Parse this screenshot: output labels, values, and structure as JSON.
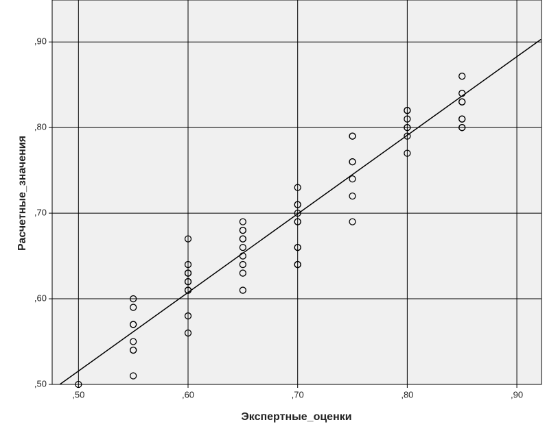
{
  "chart_data": {
    "type": "scatter",
    "x_label": "Экспертные_оценки",
    "y_label": "Расчетные_значения",
    "xlim": [
      0.476,
      0.9225
    ],
    "ylim": [
      0.5,
      0.949
    ],
    "xticks": [
      {
        "value": 0.5,
        "label": ",50"
      },
      {
        "value": 0.6,
        "label": ",60"
      },
      {
        "value": 0.7,
        "label": ",70"
      },
      {
        "value": 0.8,
        "label": ",80"
      },
      {
        "value": 0.9,
        "label": ",90"
      }
    ],
    "yticks": [
      {
        "value": 0.5,
        "label": ",50"
      },
      {
        "value": 0.6,
        "label": ",60"
      },
      {
        "value": 0.7,
        "label": ",70"
      },
      {
        "value": 0.8,
        "label": ",80"
      },
      {
        "value": 0.9,
        "label": ",90"
      }
    ],
    "grid": true,
    "background": "#f0f0f0",
    "color": "#000000",
    "x": [
      0.5,
      0.55,
      0.55,
      0.55,
      0.55,
      0.55,
      0.55,
      0.55,
      0.55,
      0.6,
      0.6,
      0.6,
      0.6,
      0.6,
      0.6,
      0.6,
      0.6,
      0.6,
      0.6,
      0.65,
      0.65,
      0.65,
      0.65,
      0.65,
      0.65,
      0.65,
      0.65,
      0.65,
      0.65,
      0.7,
      0.7,
      0.7,
      0.7,
      0.7,
      0.7,
      0.7,
      0.7,
      0.7,
      0.7,
      0.75,
      0.75,
      0.75,
      0.75,
      0.75,
      0.75,
      0.75,
      0.8,
      0.8,
      0.8,
      0.8,
      0.8,
      0.8,
      0.8,
      0.85,
      0.85,
      0.85,
      0.85,
      0.85,
      0.85,
      0.85,
      0.85
    ],
    "y": [
      0.5,
      0.6,
      0.59,
      0.57,
      0.57,
      0.55,
      0.54,
      0.54,
      0.51,
      0.67,
      0.64,
      0.63,
      0.63,
      0.62,
      0.62,
      0.61,
      0.61,
      0.58,
      0.56,
      0.69,
      0.68,
      0.68,
      0.67,
      0.67,
      0.66,
      0.65,
      0.64,
      0.63,
      0.61,
      0.73,
      0.71,
      0.71,
      0.7,
      0.69,
      0.69,
      0.66,
      0.66,
      0.64,
      0.64,
      0.79,
      0.79,
      0.76,
      0.76,
      0.74,
      0.72,
      0.69,
      0.82,
      0.82,
      0.81,
      0.8,
      0.8,
      0.79,
      0.77,
      0.86,
      0.84,
      0.83,
      0.83,
      0.81,
      0.81,
      0.8,
      0.8
    ],
    "fit_line": {
      "x": [
        0.483,
        0.922
      ],
      "y": [
        0.5,
        0.903
      ]
    }
  }
}
